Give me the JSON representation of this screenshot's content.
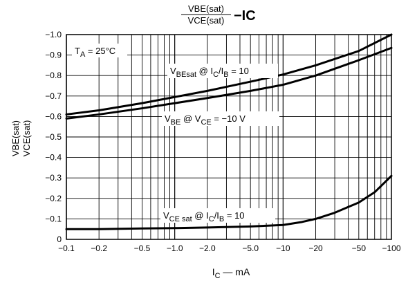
{
  "chart_data": {
    "type": "line",
    "title": {
      "fraction_top": "VBE(sat)",
      "fraction_bottom": "VCE(sat)",
      "suffix": "−I",
      "suffix_sub": "C"
    },
    "ylabel_lines": [
      "VBE(sat)",
      "VCE(sat)"
    ],
    "xlabel": {
      "main": "I",
      "sub": "C",
      "rest": " — mA"
    },
    "x_scale": "log",
    "xlim": [
      -0.1,
      -100
    ],
    "ylim": [
      0,
      -1.0
    ],
    "x_ticks": [
      {
        "value": -0.1,
        "label": "−0.1"
      },
      {
        "value": -0.2,
        "label": "−0.2"
      },
      {
        "value": -0.5,
        "label": "−0.5"
      },
      {
        "value": -1.0,
        "label": "−1.0"
      },
      {
        "value": -2.0,
        "label": "−2.0"
      },
      {
        "value": -5.0,
        "label": "−5.0"
      },
      {
        "value": -10,
        "label": "−10"
      },
      {
        "value": -20,
        "label": "−20"
      },
      {
        "value": -50,
        "label": "−50"
      },
      {
        "value": -100,
        "label": "−100"
      }
    ],
    "y_ticks": [
      {
        "value": -1.0,
        "label": "−1.0"
      },
      {
        "value": -0.9,
        "label": "−0.9"
      },
      {
        "value": -0.8,
        "label": "−0.8"
      },
      {
        "value": -0.7,
        "label": "−0.7"
      },
      {
        "value": -0.6,
        "label": "−0.6"
      },
      {
        "value": -0.5,
        "label": "−0.5"
      },
      {
        "value": -0.4,
        "label": "−0.4"
      },
      {
        "value": -0.3,
        "label": "−0.3"
      },
      {
        "value": -0.2,
        "label": "−0.2"
      },
      {
        "value": -0.1,
        "label": "−0.1"
      },
      {
        "value": 0,
        "label": "0"
      }
    ],
    "grid": true,
    "condition_label": {
      "main": "T",
      "sub": "A",
      "rest": " = 25°C"
    },
    "series": [
      {
        "name": "VBEsat @ IC/IB = 10",
        "x": [
          -0.1,
          -0.2,
          -0.5,
          -1,
          -2,
          -5,
          -10,
          -20,
          -50,
          -100
        ],
        "y": [
          -0.61,
          -0.63,
          -0.665,
          -0.695,
          -0.725,
          -0.77,
          -0.805,
          -0.85,
          -0.92,
          -1.0
        ]
      },
      {
        "name": "VBE @ VCE = −10 V",
        "x": [
          -0.1,
          -0.2,
          -0.5,
          -1,
          -2,
          -5,
          -10,
          -20,
          -50,
          -100
        ],
        "y": [
          -0.59,
          -0.61,
          -0.64,
          -0.665,
          -0.69,
          -0.725,
          -0.755,
          -0.8,
          -0.875,
          -0.935
        ]
      },
      {
        "name": "VCEsat @ IC/IB = 10",
        "x": [
          -0.1,
          -0.2,
          -0.5,
          -1,
          -2,
          -5,
          -10,
          -15,
          -20,
          -30,
          -50,
          -70,
          -100
        ],
        "y": [
          -0.05,
          -0.05,
          -0.053,
          -0.055,
          -0.058,
          -0.063,
          -0.07,
          -0.085,
          -0.1,
          -0.13,
          -0.18,
          -0.23,
          -0.31
        ]
      }
    ],
    "annotations": [
      {
        "parts": [
          [
            "V",
            ""
          ],
          [
            "BEsat",
            "sub"
          ],
          [
            "  @ I",
            ""
          ],
          [
            "C",
            "sub"
          ],
          [
            "/I",
            ""
          ],
          [
            "B",
            "sub"
          ],
          [
            " = 10",
            ""
          ]
        ]
      },
      {
        "parts": [
          [
            "V",
            ""
          ],
          [
            "BE",
            "sub"
          ],
          [
            "  @ V",
            ""
          ],
          [
            "CE",
            "sub"
          ],
          [
            " = −10 V",
            ""
          ]
        ]
      },
      {
        "parts": [
          [
            "V",
            ""
          ],
          [
            "CE sat",
            "sub"
          ],
          [
            "  @ I",
            ""
          ],
          [
            "C",
            "sub"
          ],
          [
            "/I",
            ""
          ],
          [
            "B",
            "sub"
          ],
          [
            " = 10",
            ""
          ]
        ]
      }
    ]
  }
}
